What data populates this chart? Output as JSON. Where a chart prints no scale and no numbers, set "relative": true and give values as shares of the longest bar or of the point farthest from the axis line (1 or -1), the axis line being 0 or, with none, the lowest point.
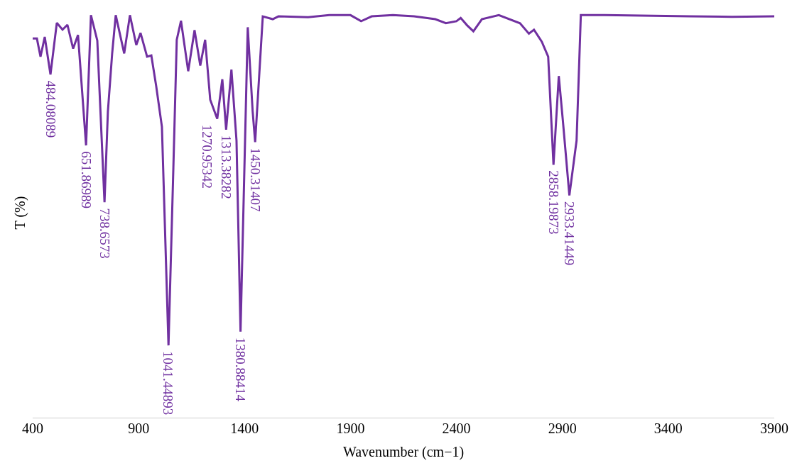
{
  "chart_data": {
    "type": "line",
    "relative": true,
    "xlabel": "Wavenumber (cm−1)",
    "ylabel": "T (%)",
    "xlim": [
      400,
      3900
    ],
    "xticks": [
      400,
      900,
      1400,
      1900,
      2400,
      2900,
      3400,
      3900
    ],
    "marker": "none",
    "line_style": "solid",
    "series": [
      {
        "color": "#7030a0",
        "x": [
          400,
          420,
          437,
          457,
          484,
          514,
          541,
          564,
          591,
          614,
          652,
          675,
          705,
          739,
          755,
          775,
          792,
          832,
          859,
          889,
          909,
          940,
          960,
          983,
          1010,
          1041,
          1064,
          1080,
          1100,
          1134,
          1164,
          1191,
          1214,
          1238,
          1271,
          1295,
          1313,
          1338,
          1362,
          1381,
          1415,
          1438,
          1450,
          1486,
          1533,
          1560,
          1700,
          1800,
          1900,
          1950,
          2000,
          2100,
          2200,
          2300,
          2350,
          2400,
          2420,
          2450,
          2480,
          2520,
          2600,
          2700,
          2742,
          2766,
          2803,
          2833,
          2858,
          2883,
          2903,
          2933,
          2967,
          2987,
          3100,
          3500,
          3700,
          3900
        ],
        "values": [
          0.942,
          0.942,
          0.897,
          0.946,
          0.853,
          0.981,
          0.964,
          0.976,
          0.917,
          0.951,
          0.677,
          1.0,
          0.937,
          0.536,
          0.761,
          0.904,
          1.0,
          0.905,
          1.0,
          0.926,
          0.956,
          0.897,
          0.9,
          0.824,
          0.723,
          0.181,
          0.621,
          0.939,
          0.986,
          0.861,
          0.963,
          0.875,
          0.939,
          0.79,
          0.743,
          0.841,
          0.716,
          0.865,
          0.689,
          0.215,
          0.97,
          0.763,
          0.685,
          0.997,
          0.99,
          0.997,
          0.995,
          1.0,
          1.0,
          0.985,
          0.997,
          1.0,
          0.997,
          0.99,
          0.98,
          0.985,
          0.993,
          0.975,
          0.96,
          0.99,
          1.0,
          0.98,
          0.954,
          0.964,
          0.934,
          0.897,
          0.629,
          0.849,
          0.734,
          0.553,
          0.689,
          1.0,
          1.0,
          0.997,
          0.996,
          0.997
        ]
      }
    ],
    "annotations": [
      {
        "text": "484.08089",
        "x": 484,
        "y": 0.853
      },
      {
        "text": "651.86989",
        "x": 652,
        "y": 0.677
      },
      {
        "text": "738.6573",
        "x": 739,
        "y": 0.536
      },
      {
        "text": "1041.44893",
        "x": 1041,
        "y": 0.181
      },
      {
        "text": "1270.95342",
        "x": 1271,
        "y": 0.743
      },
      {
        "text": "1313.38282",
        "x": 1313,
        "y": 0.716
      },
      {
        "text": "1380.88414",
        "x": 1381,
        "y": 0.215
      },
      {
        "text": "1450.31407",
        "x": 1450,
        "y": 0.685
      },
      {
        "text": "2858.19873",
        "x": 2858,
        "y": 0.629
      },
      {
        "text": "2933.41449",
        "x": 2933,
        "y": 0.553
      }
    ]
  }
}
